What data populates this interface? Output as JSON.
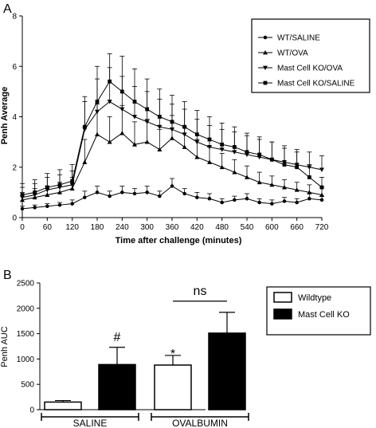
{
  "chart_data": [
    {
      "panel": "A",
      "type": "line",
      "xlabel": "Time after challenge (minutes)",
      "ylabel": "Penh Average",
      "xlim": [
        0,
        720
      ],
      "ylim": [
        0,
        8
      ],
      "x_ticks": [
        0,
        30,
        60,
        90,
        120,
        150,
        180,
        210,
        240,
        270,
        300,
        330,
        360,
        390,
        420,
        450,
        480,
        510,
        540,
        570,
        600,
        630,
        660,
        690,
        720
      ],
      "x_tick_labels": [
        "0",
        "60",
        "120",
        "180",
        "240",
        "300",
        "360",
        "420",
        "480",
        "540",
        "600",
        "660",
        "720"
      ],
      "y_tick_labels": [
        "0",
        "2",
        "4",
        "6",
        "8"
      ],
      "legend_position": "top-right",
      "series": [
        {
          "name": "WT/SALINE",
          "marker": "circle",
          "values": [
            0.35,
            0.4,
            0.45,
            0.5,
            0.55,
            0.8,
            1.0,
            0.85,
            1.0,
            0.95,
            1.0,
            0.85,
            1.25,
            0.95,
            0.8,
            0.75,
            0.6,
            0.7,
            0.75,
            0.6,
            0.55,
            0.65,
            0.6,
            0.75,
            0.7
          ],
          "error": [
            0.1,
            0.1,
            0.1,
            0.1,
            0.15,
            0.25,
            0.25,
            0.2,
            0.25,
            0.2,
            0.25,
            0.2,
            0.3,
            0.2,
            0.2,
            0.2,
            0.15,
            0.15,
            0.2,
            0.15,
            0.15,
            0.15,
            0.15,
            0.2,
            0.15
          ]
        },
        {
          "name": "WT/OVA",
          "marker": "triangle-up",
          "values": [
            0.7,
            0.8,
            0.9,
            1.0,
            1.15,
            2.2,
            3.3,
            3.0,
            3.35,
            2.9,
            3.0,
            2.7,
            3.15,
            2.8,
            2.4,
            2.2,
            2.0,
            1.8,
            1.6,
            1.4,
            1.3,
            1.2,
            1.1,
            1.0,
            0.9
          ],
          "error": [
            0.3,
            0.35,
            0.35,
            0.4,
            0.45,
            0.9,
            1.2,
            1.0,
            1.1,
            0.9,
            0.9,
            0.8,
            0.9,
            0.8,
            0.7,
            0.6,
            0.55,
            0.5,
            0.45,
            0.4,
            0.35,
            0.3,
            0.3,
            0.3,
            0.3
          ]
        },
        {
          "name": "Mast Cell KO/OVA",
          "marker": "triangle-down",
          "values": [
            0.8,
            0.9,
            1.1,
            1.2,
            1.3,
            3.5,
            4.2,
            4.6,
            4.3,
            4.0,
            3.8,
            3.6,
            3.5,
            3.3,
            3.0,
            2.8,
            2.7,
            2.6,
            2.5,
            2.4,
            2.3,
            2.2,
            2.1,
            2.0,
            1.9
          ],
          "error": [
            0.4,
            0.45,
            0.5,
            0.5,
            0.55,
            1.1,
            1.3,
            1.35,
            1.3,
            1.2,
            1.2,
            1.1,
            1.0,
            1.0,
            0.9,
            0.85,
            0.8,
            0.8,
            0.75,
            0.7,
            0.7,
            0.65,
            0.6,
            0.6,
            0.55
          ]
        },
        {
          "name": "Mast  Cell KO/SALINE",
          "marker": "square",
          "values": [
            0.9,
            1.0,
            1.2,
            1.3,
            1.45,
            3.6,
            4.6,
            5.4,
            5.0,
            4.6,
            4.3,
            4.0,
            3.8,
            3.6,
            3.3,
            3.1,
            2.9,
            2.8,
            2.6,
            2.5,
            2.3,
            2.1,
            2.0,
            1.6,
            1.2
          ],
          "error": [
            0.45,
            0.5,
            0.55,
            0.6,
            0.65,
            1.2,
            1.4,
            1.1,
            1.4,
            1.3,
            1.2,
            1.1,
            1.05,
            1.0,
            0.95,
            0.9,
            0.85,
            0.8,
            0.75,
            0.7,
            0.7,
            0.65,
            0.6,
            0.5,
            0.4
          ]
        }
      ]
    },
    {
      "panel": "B",
      "type": "bar",
      "ylabel": "Penh AUC",
      "ylim": [
        0,
        2500
      ],
      "y_tick_labels": [
        "0",
        "500",
        "1000",
        "1500",
        "2000",
        "2500"
      ],
      "legend_position": "top-right",
      "groups": [
        "SALINE",
        "OVALBUMIN"
      ],
      "series": [
        {
          "name": "Wildtype",
          "fill": "#ffffff",
          "values": [
            150,
            880
          ],
          "error": [
            30,
            190
          ]
        },
        {
          "name": "Mast Cell KO",
          "fill": "#000000",
          "values": [
            890,
            1510
          ],
          "error": [
            340,
            410
          ]
        }
      ],
      "annotations": {
        "hash": "#",
        "star": "*",
        "ns": "ns"
      }
    }
  ]
}
